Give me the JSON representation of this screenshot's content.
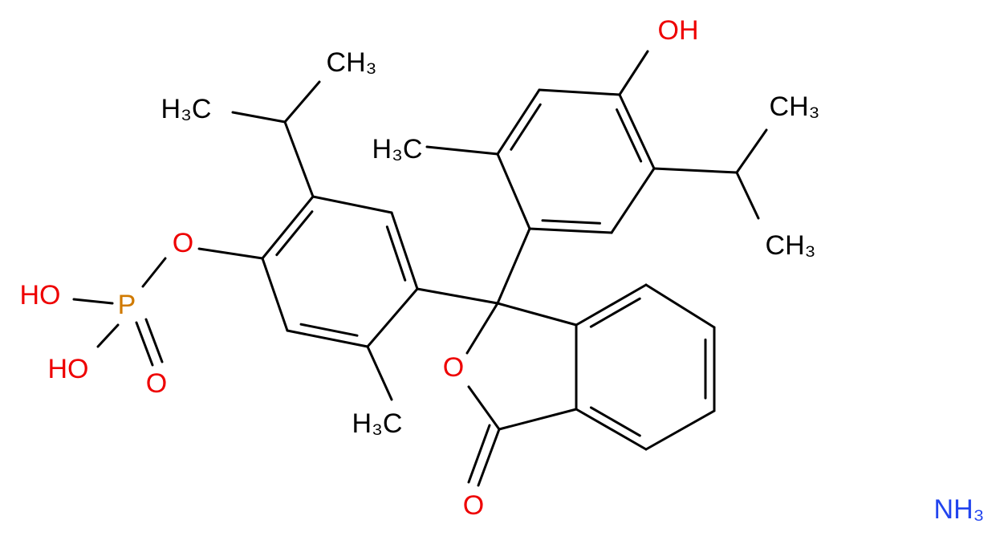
{
  "atoms": [
    "CH₃",
    "H₃C",
    "O",
    "HO",
    "P",
    "HO",
    "O",
    "H₃C",
    "OH",
    "CH₃",
    "H₃C",
    "CH₃",
    "O",
    "O",
    "NH₃"
  ]
}
